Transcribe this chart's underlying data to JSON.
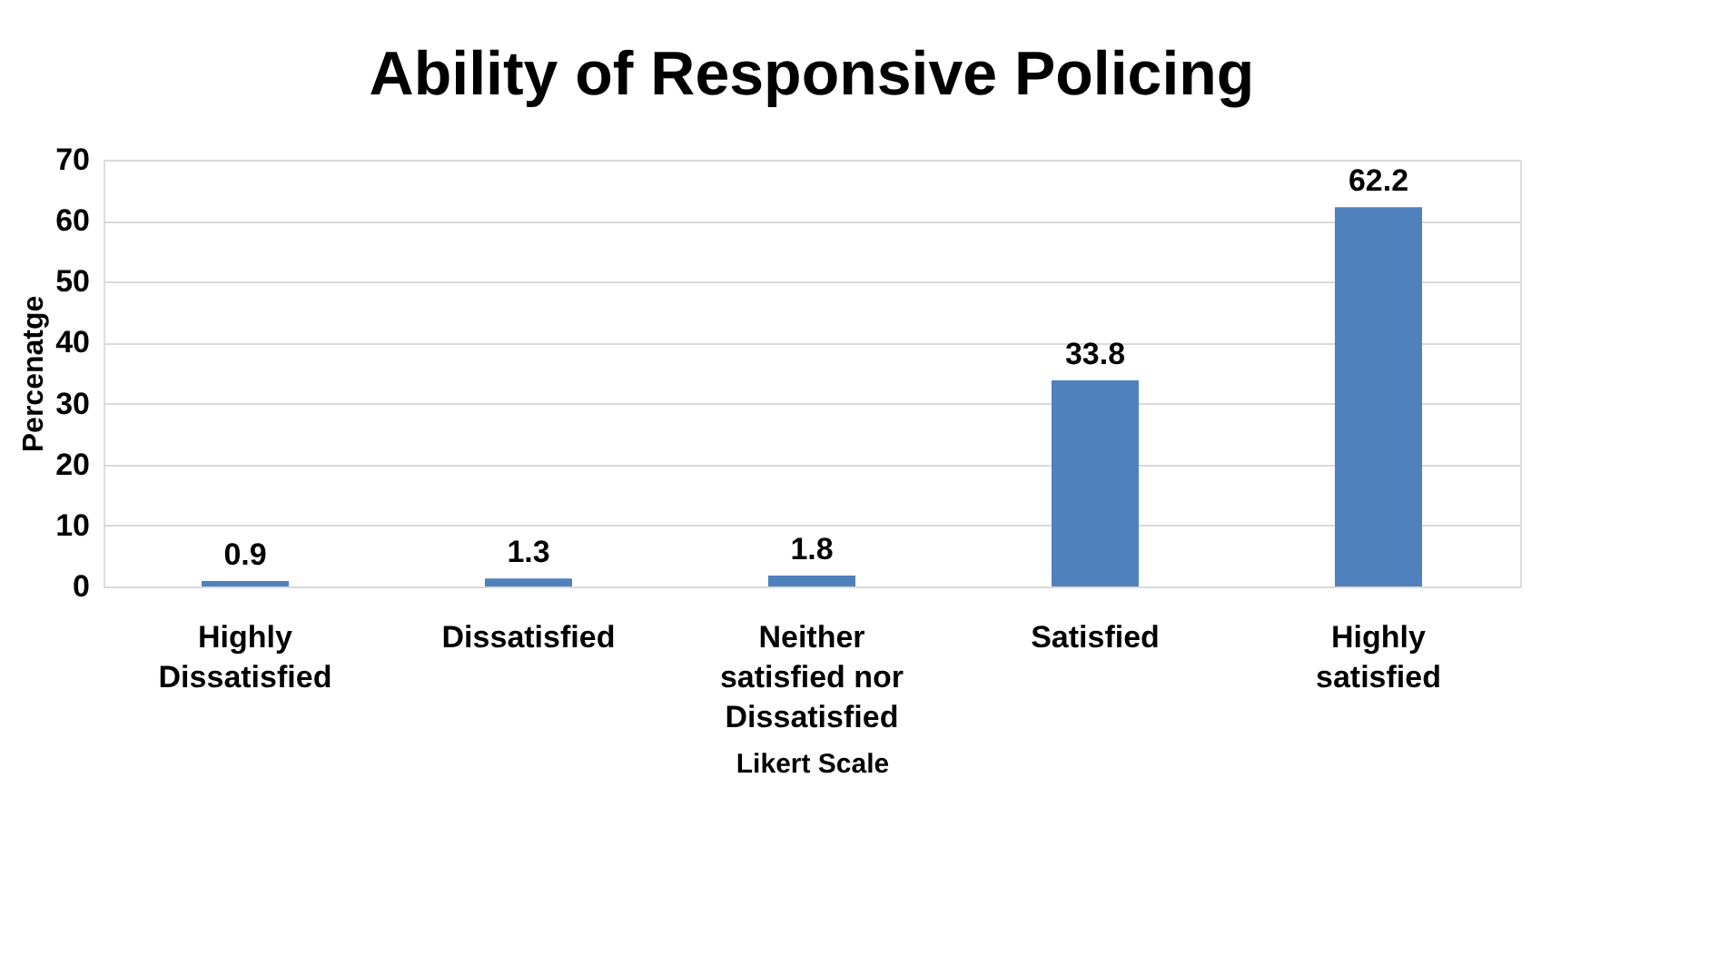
{
  "chart_data": {
    "type": "bar",
    "title": "Ability of Responsive Policing",
    "xlabel": "Likert Scale",
    "ylabel": "Percenatge",
    "categories": [
      "Highly Dissatisfied",
      "Dissatisfied",
      "Neither satisfied nor Dissatisfied",
      "Satisfied",
      "Highly satisfied"
    ],
    "values": [
      0.9,
      1.3,
      1.8,
      33.8,
      62.2
    ],
    "color": "#4f81bd",
    "ylim": [
      0,
      70
    ],
    "yticks": [
      0,
      10,
      20,
      30,
      40,
      50,
      60,
      70
    ],
    "grid": "y",
    "data_labels": true
  }
}
